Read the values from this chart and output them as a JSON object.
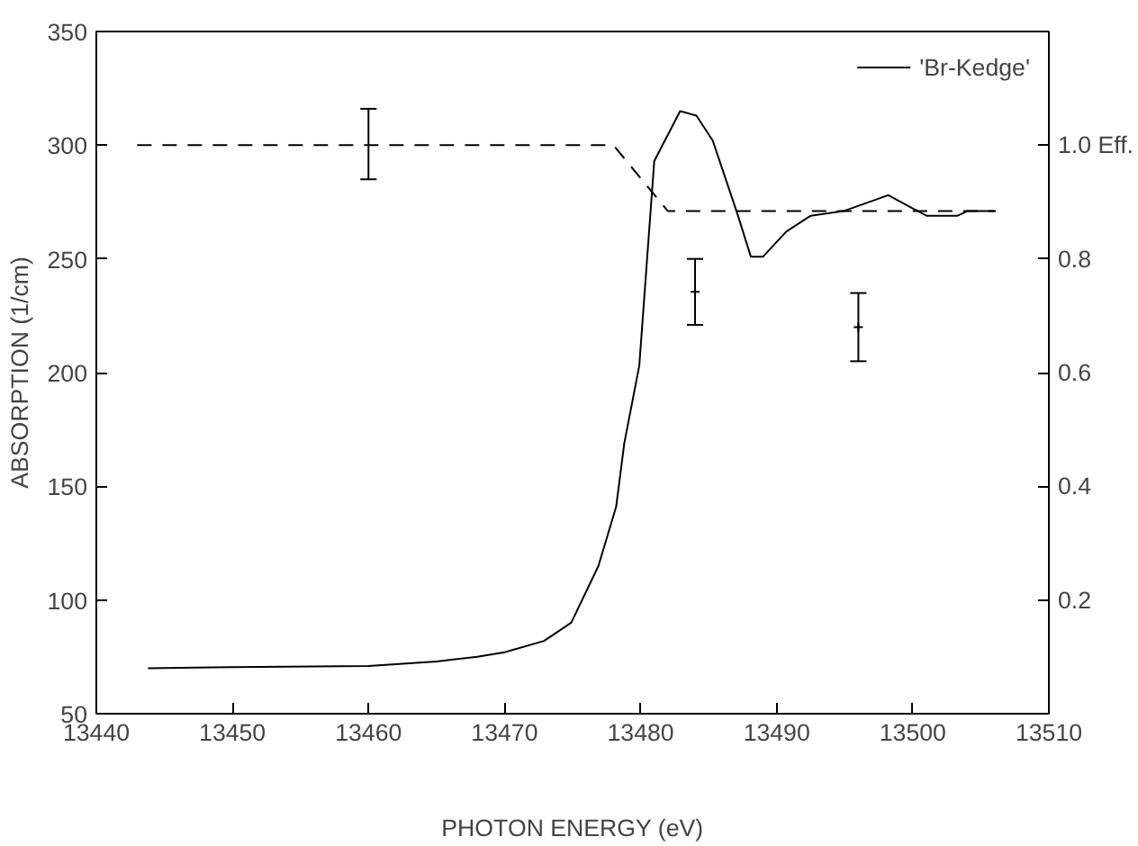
{
  "chart_data": {
    "type": "line",
    "xlabel": "PHOTON ENERGY (eV)",
    "ylabel": "ABSORPTION (1/cm)",
    "xlim": [
      13440,
      13510
    ],
    "xticks": [
      13440,
      13450,
      13460,
      13470,
      13480,
      13490,
      13500,
      13510
    ],
    "ylim": [
      50,
      350
    ],
    "yticks": [
      50,
      100,
      150,
      200,
      250,
      300,
      350
    ],
    "y2lim": [
      0,
      1.2
    ],
    "y2ticks": [
      0.2,
      0.4,
      0.6,
      0.8,
      {
        "value": 1.0,
        "label": "1.0 Eff."
      }
    ],
    "grid": false,
    "legend": "top right",
    "series": [
      {
        "name": "'Br-Kedge'",
        "color": "#000000",
        "line_style": "solid",
        "x": [
          13443.8,
          13450,
          13460,
          13465,
          13468,
          13470,
          13472.9,
          13474.9,
          13476.9,
          13478.2,
          13478.8,
          13479.9,
          13481.0,
          13482.9,
          13484.1,
          13485.3,
          13487.1,
          13488.1,
          13489.0,
          13490.7,
          13492.5,
          13494.9,
          13498.2,
          13501.0,
          13503.3,
          13504.0,
          13506.1
        ],
        "values": [
          70,
          70.5,
          71,
          73,
          75,
          77,
          82,
          90,
          115,
          141,
          169,
          203,
          293,
          315,
          313,
          302,
          270,
          251,
          251,
          262,
          269,
          271,
          278,
          269,
          269,
          271,
          271
        ]
      },
      {
        "type": "line",
        "axis": "y2",
        "color": "#000000",
        "line_style": "dashed",
        "x": [
          13443,
          13460,
          13478,
          13482,
          13506
        ],
        "values": [
          1.0,
          1.0,
          1.0,
          0.884,
          0.884
        ],
        "errors": [
          null,
          [
            0.94,
            1.064
          ],
          null,
          null,
          null
        ]
      },
      {
        "type": "scatter",
        "axis": "y2",
        "marker": "cross",
        "color": "#000000",
        "x": [
          13484,
          13496
        ],
        "values": [
          0.742,
          0.68
        ],
        "errors": [
          [
            0.684,
            0.8
          ],
          [
            0.62,
            0.74
          ]
        ]
      }
    ]
  }
}
